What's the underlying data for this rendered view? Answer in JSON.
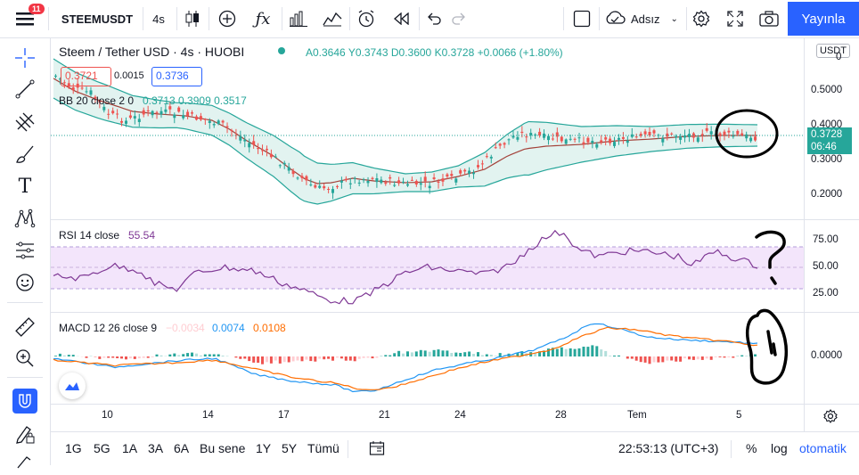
{
  "topbar": {
    "notifications": "11",
    "symbol": "STEEMUSDT",
    "interval": "4s",
    "layout_name": "Adsız",
    "publish": "Yayınla"
  },
  "legend": {
    "title": "Steem / Tether USD · 4s · HUOBI",
    "ohlc": "A0.3646  Y0.3743  D0.3600  K0.3728  +0.0066 (+1.80%)",
    "bid": "0.3721",
    "spread": "0.0015",
    "ask": "0.3736",
    "bb": "BB 20 close 2 0",
    "bb_values": "0.3713  0.3909  0.3517",
    "rsi": "RSI 14 close",
    "rsi_value": "55.54",
    "macd": "MACD 12 26 close 9",
    "macd_v1": "−0.0034",
    "macd_v2": "0.0074",
    "macd_v3": "0.0108"
  },
  "price_axis": {
    "currency": "USDT",
    "labels": [
      "0.5000",
      "0.4000",
      "0.3000",
      "0.2000"
    ],
    "current_price": "0.3728",
    "countdown": "06:46",
    "rsi_labels": [
      "75.00",
      "50.00",
      "25.00"
    ],
    "macd_label": "0.0000",
    "top_partial": "0"
  },
  "time_axis": [
    "10",
    "14",
    "17",
    "21",
    "24",
    "28",
    "Tem",
    "5"
  ],
  "bottombar": {
    "ranges": [
      "1G",
      "5G",
      "1A",
      "3A",
      "6A",
      "Bu sene",
      "1Y",
      "5Y",
      "Tümü"
    ],
    "clock": "22:53:13 (UTC+3)",
    "percent": "%",
    "log": "log",
    "auto": "otomatik"
  },
  "colors": {
    "up": "#26a69a",
    "down": "#ef5350",
    "accent": "#2962ff",
    "rsi": "#7e3794",
    "macd_line": "#2196f3",
    "signal_line": "#ff6d00",
    "bb_fill": "#e0f2ef"
  },
  "icons": {
    "candles": "candles-icon",
    "add_indicator": "plus-circle-icon",
    "fx": "fx-icon",
    "alert": "alarm-clock-icon",
    "replay": "replay-icon",
    "undo": "undo-icon",
    "redo": "redo-icon",
    "settings": "gear-icon",
    "fullscreen": "fullscreen-icon",
    "snapshot": "camera-icon"
  }
}
